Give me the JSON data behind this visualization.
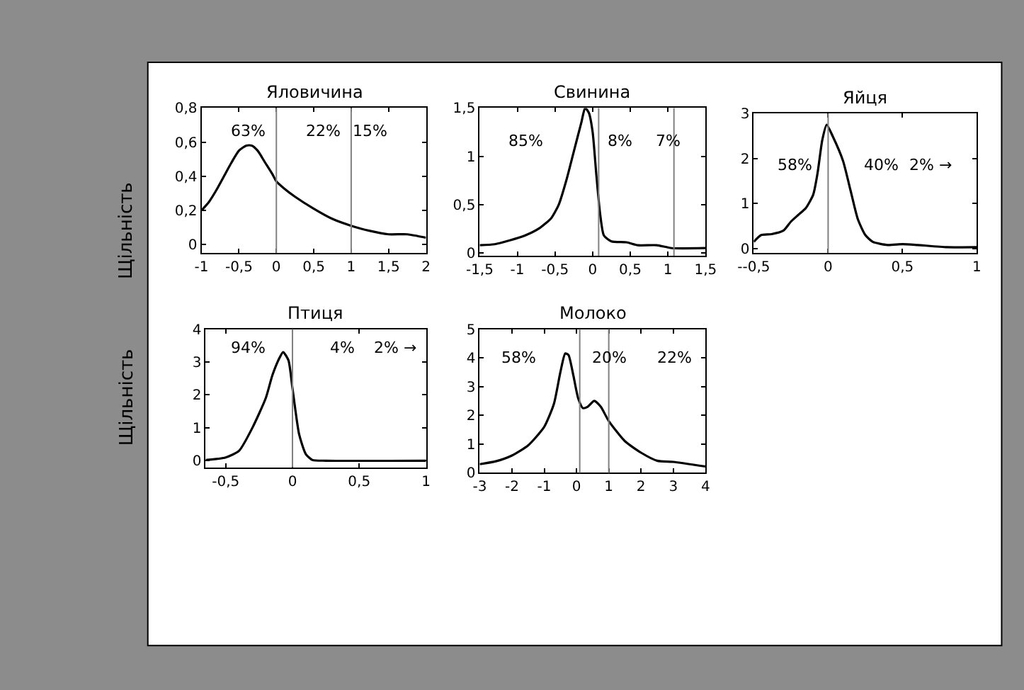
{
  "chart_data": [
    {
      "type": "line",
      "title": "Яловичина",
      "ylabel": "Щільність",
      "xlim": [
        -1,
        2
      ],
      "ylim": [
        -0.05,
        0.8
      ],
      "xticks": [
        -1,
        {
          "value": -0.5,
          "label": "-0,5"
        },
        0,
        {
          "value": 0.5,
          "label": "0,5"
        },
        1,
        {
          "value": 1.5,
          "label": "1,5"
        },
        2
      ],
      "yticks": [
        0,
        {
          "value": 0.2,
          "label": "0,2"
        },
        {
          "value": 0.4,
          "label": "0,4"
        },
        {
          "value": 0.6,
          "label": "0,6"
        },
        {
          "value": 0.8,
          "label": "0,8"
        }
      ],
      "series": [
        {
          "color": "#000000",
          "x": [
            -1,
            -0.9,
            -0.8,
            -0.7,
            -0.6,
            -0.5,
            -0.4,
            -0.33,
            -0.25,
            -0.15,
            -0.05,
            0,
            0.1,
            0.25,
            0.5,
            0.75,
            1,
            1.25,
            1.5,
            1.75,
            2
          ],
          "values": [
            0.2,
            0.25,
            0.32,
            0.4,
            0.48,
            0.55,
            0.58,
            0.58,
            0.55,
            0.48,
            0.41,
            0.37,
            0.33,
            0.28,
            0.21,
            0.15,
            0.11,
            0.08,
            0.06,
            0.06,
            0.04
          ]
        }
      ],
      "ref_lines": [
        {
          "axis": "x",
          "value": 0,
          "color": "#808080"
        },
        {
          "axis": "x",
          "value": 1,
          "color": "#808080"
        }
      ],
      "annotations": [
        "63%",
        "22%",
        "15%"
      ]
    },
    {
      "type": "line",
      "title": "Свинина",
      "xlim": [
        -1.5,
        1.5
      ],
      "ylim": [
        -0.03,
        1.5
      ],
      "xticks": [
        {
          "value": -1.5,
          "label": "-1,5"
        },
        -1,
        {
          "value": -0.5,
          "label": "-0,5"
        },
        0,
        {
          "value": 0.5,
          "label": "0,5"
        },
        1,
        {
          "value": 1.5,
          "label": "1,5"
        }
      ],
      "yticks": [
        0,
        {
          "value": 0.5,
          "label": "0,5"
        },
        1,
        {
          "value": 1.5,
          "label": "1,5"
        }
      ],
      "series": [
        {
          "color": "#000000",
          "x": [
            -1.5,
            -1.3,
            -1.1,
            -0.9,
            -0.7,
            -0.55,
            -0.45,
            -0.35,
            -0.25,
            -0.15,
            -0.1,
            -0.05,
            0,
            0.05,
            0.1,
            0.15,
            0.25,
            0.45,
            0.6,
            0.85,
            1.05,
            1.5
          ],
          "values": [
            0.08,
            0.09,
            0.13,
            0.18,
            0.26,
            0.36,
            0.5,
            0.75,
            1.05,
            1.35,
            1.5,
            1.45,
            1.25,
            0.8,
            0.4,
            0.18,
            0.12,
            0.11,
            0.08,
            0.08,
            0.05,
            0.05
          ]
        }
      ],
      "ref_lines": [
        {
          "axis": "x",
          "value": 0.08,
          "color": "#808080"
        },
        {
          "axis": "x",
          "value": 1.08,
          "color": "#808080"
        }
      ],
      "annotations": [
        "85%",
        "8%",
        "7%"
      ]
    },
    {
      "type": "line",
      "title": "Яйця",
      "xlim": [
        -0.5,
        1
      ],
      "ylim": [
        -0.1,
        3
      ],
      "xticks": [
        {
          "value": -0.5,
          "label": "--0,5"
        },
        0,
        {
          "value": 0.5,
          "label": "0,5"
        },
        1
      ],
      "yticks": [
        0,
        1,
        2,
        3
      ],
      "series": [
        {
          "color": "#000000",
          "x": [
            -0.5,
            -0.45,
            -0.38,
            -0.3,
            -0.25,
            -0.2,
            -0.15,
            -0.1,
            -0.07,
            -0.04,
            -0.01,
            0.03,
            0.1,
            0.15,
            0.2,
            0.25,
            0.3,
            0.4,
            0.5,
            0.6,
            0.8,
            1
          ],
          "values": [
            0.15,
            0.3,
            0.32,
            0.4,
            0.6,
            0.75,
            0.9,
            1.2,
            1.7,
            2.4,
            2.75,
            2.5,
            1.95,
            1.3,
            0.65,
            0.3,
            0.15,
            0.08,
            0.1,
            0.08,
            0.03,
            0.03
          ]
        }
      ],
      "ref_lines": [
        {
          "axis": "x",
          "value": 0,
          "color": "#808080"
        }
      ],
      "annotations": [
        "58%",
        "40%",
        "2% →"
      ]
    },
    {
      "type": "line",
      "title": "Птиця",
      "ylabel": "Щільність",
      "xlim": [
        -0.65,
        1
      ],
      "ylim": [
        -0.2,
        4
      ],
      "xticks": [
        {
          "value": -0.5,
          "label": "-0,5"
        },
        0,
        {
          "value": 0.5,
          "label": "0,5"
        },
        1
      ],
      "yticks": [
        0,
        1,
        2,
        3,
        4
      ],
      "series": [
        {
          "color": "#000000",
          "x": [
            -0.65,
            -0.5,
            -0.4,
            -0.3,
            -0.2,
            -0.15,
            -0.1,
            -0.07,
            -0.03,
            0,
            0.05,
            0.1,
            0.15,
            0.25,
            1
          ],
          "values": [
            0.02,
            0.1,
            0.3,
            1.0,
            1.9,
            2.6,
            3.1,
            3.3,
            3.05,
            2.2,
            0.8,
            0.2,
            0.02,
            0,
            0
          ]
        }
      ],
      "ref_lines": [
        {
          "axis": "x",
          "value": 0,
          "color": "#808080"
        }
      ],
      "annotations": [
        "94%",
        "4%",
        "2% →"
      ]
    },
    {
      "type": "line",
      "title": "Молоко",
      "xlim": [
        -3,
        4
      ],
      "ylim": [
        0,
        5
      ],
      "xticks": [
        -3,
        -2,
        -1,
        0,
        1,
        2,
        3,
        4
      ],
      "yticks": [
        0,
        1,
        2,
        3,
        4,
        5
      ],
      "series": [
        {
          "color": "#000000",
          "x": [
            -3,
            -2.5,
            -2,
            -1.5,
            -1,
            -0.7,
            -0.5,
            -0.35,
            -0.25,
            -0.1,
            0.05,
            0.2,
            0.35,
            0.55,
            0.75,
            1,
            1.5,
            2,
            2.5,
            3,
            4
          ],
          "values": [
            0.3,
            0.4,
            0.6,
            0.95,
            1.6,
            2.4,
            3.5,
            4.15,
            4.1,
            3.4,
            2.6,
            2.25,
            2.3,
            2.5,
            2.3,
            1.8,
            1.1,
            0.7,
            0.42,
            0.38,
            0.22
          ]
        }
      ],
      "ref_lines": [
        {
          "axis": "x",
          "value": 0.1,
          "color": "#808080"
        },
        {
          "axis": "x",
          "value": 1.0,
          "color": "#808080"
        }
      ],
      "annotations": [
        "58%",
        "20%",
        "22%"
      ]
    }
  ]
}
